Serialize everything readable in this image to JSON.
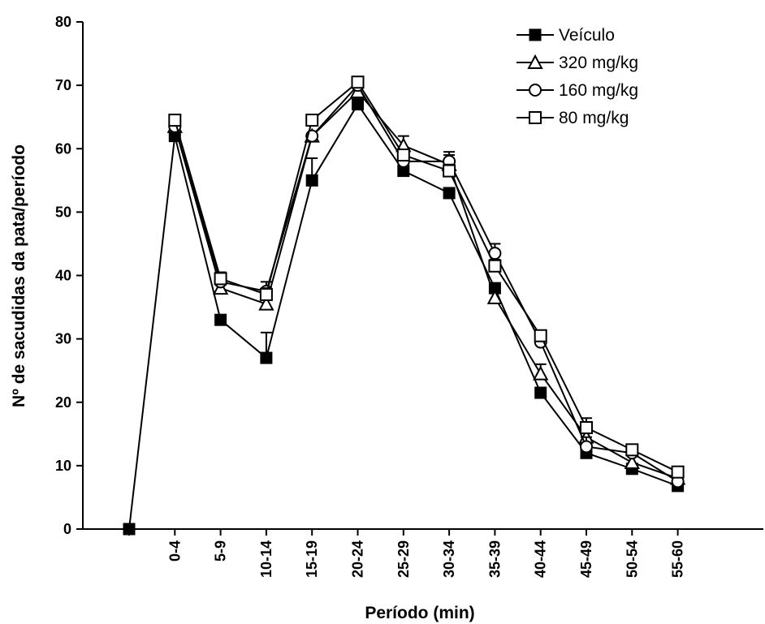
{
  "chart_data": {
    "type": "line",
    "xlabel": "Período (min)",
    "ylabel": "Nº de sacudidas da pata/período",
    "ylim": [
      0,
      80
    ],
    "yticks": [
      0,
      10,
      20,
      30,
      40,
      50,
      60,
      70,
      80
    ],
    "categories": [
      "",
      "0-4",
      "5-9",
      "10-14",
      "15-19",
      "20-24",
      "25-29",
      "30-34",
      "35-39",
      "40-44",
      "45-49",
      "50-54",
      "55-60"
    ],
    "legend_position": "top-right",
    "grid": false,
    "series": [
      {
        "name": "Veículo",
        "marker": "filled-square",
        "values": [
          0,
          62,
          33,
          27,
          55,
          67,
          56.5,
          53,
          38,
          21.5,
          12,
          9.5,
          6.8
        ],
        "error": [
          0,
          0,
          0,
          4,
          3.5,
          0,
          0,
          0,
          0,
          0,
          0,
          0,
          0
        ]
      },
      {
        "name": "320 mg/kg",
        "marker": "triangle",
        "values": [
          null,
          63.5,
          38,
          35.5,
          62,
          69,
          60.5,
          57.5,
          36.5,
          24.5,
          14.5,
          10.5,
          8
        ],
        "error": [
          0,
          0,
          1.5,
          2,
          0,
          0,
          1.5,
          1.5,
          0,
          1.5,
          1.5,
          0,
          0
        ]
      },
      {
        "name": "160 mg/kg",
        "marker": "circle",
        "values": [
          null,
          63.5,
          39,
          37.5,
          62,
          70,
          58,
          58,
          43.5,
          29.5,
          13,
          12,
          7.5
        ],
        "error": [
          0,
          0,
          1.5,
          1.5,
          0,
          0,
          0,
          1.5,
          1.5,
          0,
          1.5,
          0,
          0
        ]
      },
      {
        "name": "80 mg/kg",
        "marker": "square",
        "values": [
          null,
          64.5,
          39.5,
          37,
          64.5,
          70.5,
          59,
          56.5,
          41.5,
          30.5,
          16,
          12.5,
          9
        ],
        "error": [
          0,
          0,
          1,
          1,
          0,
          0,
          0,
          1,
          1,
          0,
          1.5,
          0,
          0
        ]
      }
    ]
  }
}
